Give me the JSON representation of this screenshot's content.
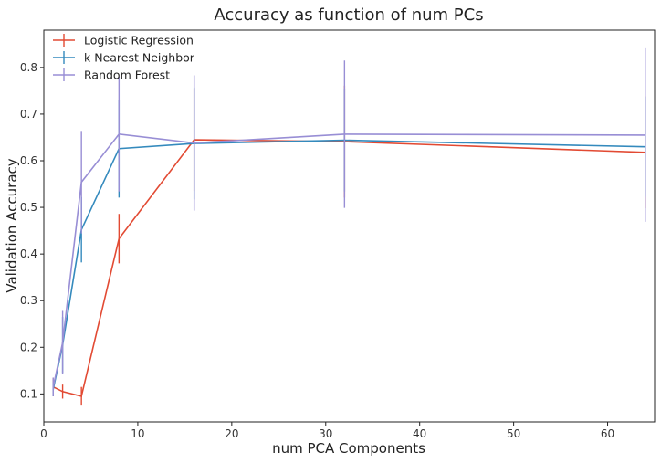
{
  "chart_data": {
    "type": "line",
    "title": "Accuracy as function of num PCs",
    "xlabel": "num PCA Components",
    "ylabel": "Validation Accuracy",
    "xlim": [
      0,
      65
    ],
    "ylim": [
      0.04,
      0.88
    ],
    "xticks": [
      0,
      10,
      20,
      30,
      40,
      50,
      60
    ],
    "yticks": [
      0.1,
      0.2,
      0.3,
      0.4,
      0.5,
      0.6,
      0.7,
      0.8
    ],
    "xtick_labels": [
      "0",
      "10",
      "20",
      "30",
      "40",
      "50",
      "60"
    ],
    "ytick_labels": [
      "0.1",
      "0.2",
      "0.3",
      "0.4",
      "0.5",
      "0.6",
      "0.7",
      "0.8"
    ],
    "grid": false,
    "legend_position": "top-left",
    "x": [
      1,
      2,
      4,
      8,
      16,
      32,
      64
    ],
    "series": [
      {
        "name": "Logistic Regression",
        "color": "#e24a33",
        "values": [
          0.115,
          0.105,
          0.095,
          0.433,
          0.645,
          0.641,
          0.618
        ],
        "errors": [
          0.02,
          0.015,
          0.02,
          0.053,
          0.11,
          0.12,
          0.12
        ]
      },
      {
        "name": "k Nearest Neighbor",
        "color": "#348abd",
        "values": [
          0.11,
          0.205,
          0.452,
          0.626,
          0.637,
          0.644,
          0.63
        ],
        "errors": [
          0.015,
          0.06,
          0.07,
          0.105,
          0.12,
          0.11,
          0.107
        ]
      },
      {
        "name": "Random Forest",
        "color": "#988ed5",
        "values": [
          0.115,
          0.21,
          0.554,
          0.657,
          0.638,
          0.657,
          0.655
        ],
        "errors": [
          0.02,
          0.068,
          0.11,
          0.123,
          0.145,
          0.158,
          0.186
        ]
      }
    ]
  }
}
